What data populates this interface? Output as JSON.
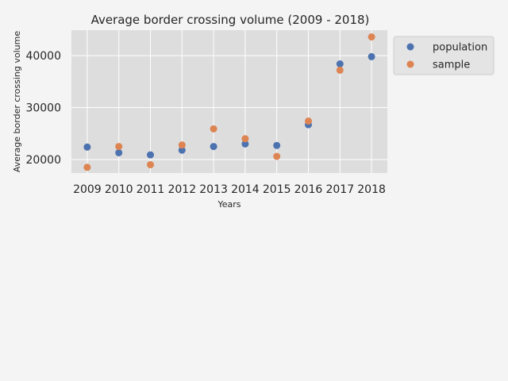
{
  "chart_data": {
    "type": "scatter",
    "title": "Average border crossing volume (2009 - 2018)",
    "xlabel": "Years",
    "ylabel": "Average border crossing volume",
    "categories": [
      "2009",
      "2010",
      "2011",
      "2012",
      "2013",
      "2014",
      "2015",
      "2016",
      "2017",
      "2018"
    ],
    "yticks": [
      20000,
      30000,
      40000
    ],
    "ylim": [
      17400,
      44900
    ],
    "grid": true,
    "legend_position": "outside-top-right",
    "series": [
      {
        "name": "population",
        "color": "#4c72b0",
        "values": [
          22400,
          21300,
          20900,
          21800,
          22500,
          23000,
          22700,
          26700,
          38400,
          39800
        ]
      },
      {
        "name": "sample",
        "color": "#dd8452",
        "values": [
          18500,
          22500,
          19000,
          22800,
          25900,
          24000,
          20600,
          27400,
          37200,
          43600
        ]
      }
    ]
  }
}
